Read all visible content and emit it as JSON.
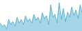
{
  "chart_data": {
    "type": "area",
    "values": [
      30,
      25,
      28,
      22,
      35,
      28,
      32,
      26,
      38,
      30,
      35,
      28,
      40,
      32,
      36,
      30,
      42,
      34,
      38,
      30,
      44,
      36,
      40,
      28,
      55,
      38,
      42,
      30,
      58,
      35,
      50,
      32,
      45,
      38,
      52,
      40,
      48,
      36,
      55,
      42
    ],
    "color": "#5ab4d6",
    "xlim": [
      0,
      39
    ],
    "ylim": [
      19,
      61
    ],
    "grid": false,
    "tick_labels": false
  }
}
